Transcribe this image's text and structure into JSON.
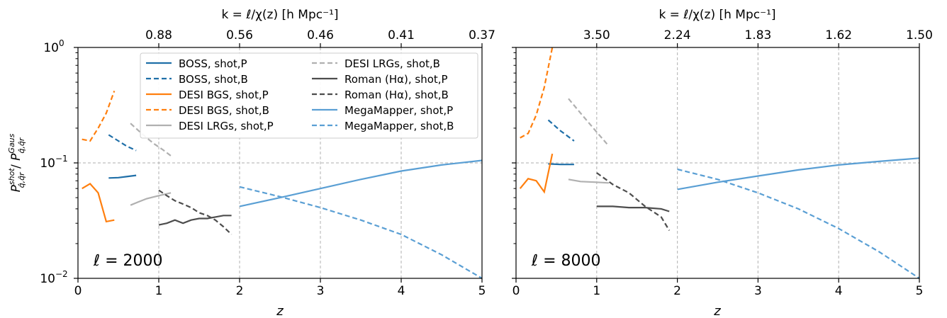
{
  "chart_data": [
    {
      "type": "line",
      "annotation": "ℓ = 2000",
      "xlabel": "z",
      "ylabel": "P^shot / P^Gaus",
      "ylabel_main": "P",
      "ylabel_sup1": "shot",
      "ylabel_sub1": "q̂,q̂r",
      "ylabel_sup2": "Gaus",
      "ylabel_sub2": "q̂,q̂r",
      "top_xlabel": "k = ℓ/χ(z) [h Mpc⁻¹]",
      "top_ticks": [
        {
          "z": 1,
          "label": "0.88"
        },
        {
          "z": 2,
          "label": "0.56"
        },
        {
          "z": 3,
          "label": "0.46"
        },
        {
          "z": 4,
          "label": "0.41"
        },
        {
          "z": 5,
          "label": "0.37"
        }
      ],
      "xlim": [
        0,
        5
      ],
      "ylim": [
        0.01,
        1
      ],
      "yscale": "log",
      "x_ticks": [
        "0",
        "1",
        "2",
        "3",
        "4",
        "5"
      ],
      "y_ticks": [
        {
          "value": 0.01,
          "base": "10",
          "exp": "−2"
        },
        {
          "value": 0.1,
          "base": "10",
          "exp": "−1"
        },
        {
          "value": 1,
          "base": "10",
          "exp": "0"
        }
      ],
      "hline": 0.1,
      "vlines": [
        1,
        2,
        3,
        4
      ],
      "legend_position": "top",
      "series": [
        {
          "name": "BOSS, shot,P",
          "color": "#1f6fa8",
          "dash": "solid",
          "x": [
            0.38,
            0.5,
            0.6,
            0.72
          ],
          "y": [
            0.074,
            0.0745,
            0.076,
            0.078
          ]
        },
        {
          "name": "BOSS, shot,B",
          "color": "#1f6fa8",
          "dash": "dashed",
          "x": [
            0.38,
            0.5,
            0.6,
            0.72
          ],
          "y": [
            0.175,
            0.155,
            0.14,
            0.128
          ]
        },
        {
          "name": "DESI BGS, shot,P",
          "color": "#ff7f0e",
          "dash": "solid",
          "x": [
            0.05,
            0.15,
            0.25,
            0.35,
            0.45
          ],
          "y": [
            0.06,
            0.066,
            0.055,
            0.031,
            0.032
          ]
        },
        {
          "name": "DESI BGS, shot,B",
          "color": "#ff7f0e",
          "dash": "dashed",
          "x": [
            0.05,
            0.15,
            0.25,
            0.35,
            0.45
          ],
          "y": [
            0.16,
            0.155,
            0.2,
            0.27,
            0.42
          ]
        },
        {
          "name": "DESI LRGs, shot,P",
          "color": "#b0b0b0",
          "dash": "solid",
          "x": [
            0.65,
            0.75,
            0.85,
            0.95,
            1.05,
            1.15
          ],
          "y": [
            0.043,
            0.046,
            0.049,
            0.051,
            0.053,
            0.055
          ]
        },
        {
          "name": "DESI LRGs, shot,B",
          "color": "#b0b0b0",
          "dash": "dashed",
          "x": [
            0.65,
            0.75,
            0.85,
            0.95,
            1.05,
            1.15
          ],
          "y": [
            0.22,
            0.19,
            0.165,
            0.145,
            0.13,
            0.115
          ]
        },
        {
          "name": "Roman (Hα), shot,P",
          "color": "#4d4d4d",
          "dash": "solid",
          "x": [
            1.0,
            1.1,
            1.2,
            1.3,
            1.4,
            1.5,
            1.6,
            1.7,
            1.8,
            1.9
          ],
          "y": [
            0.029,
            0.03,
            0.032,
            0.03,
            0.032,
            0.033,
            0.033,
            0.034,
            0.035,
            0.035
          ]
        },
        {
          "name": "Roman (Hα), shot,B",
          "color": "#4d4d4d",
          "dash": "dashed",
          "x": [
            1.0,
            1.1,
            1.2,
            1.3,
            1.4,
            1.5,
            1.6,
            1.7,
            1.8,
            1.9
          ],
          "y": [
            0.058,
            0.052,
            0.047,
            0.044,
            0.041,
            0.037,
            0.035,
            0.032,
            0.028,
            0.024
          ]
        },
        {
          "name": "MegaMapper, shot,P",
          "color": "#5a9fd4",
          "dash": "solid",
          "x": [
            2.0,
            2.5,
            3.0,
            3.5,
            4.0,
            4.5,
            5.0
          ],
          "y": [
            0.042,
            0.05,
            0.06,
            0.072,
            0.085,
            0.096,
            0.105
          ]
        },
        {
          "name": "MegaMapper, shot,B",
          "color": "#5a9fd4",
          "dash": "dashed",
          "x": [
            2.0,
            2.5,
            3.0,
            3.5,
            4.0,
            4.5,
            5.0
          ],
          "y": [
            0.062,
            0.051,
            0.041,
            0.032,
            0.024,
            0.016,
            0.01
          ]
        }
      ]
    },
    {
      "type": "line",
      "annotation": "ℓ = 8000",
      "xlabel": "z",
      "top_xlabel": "k = ℓ/χ(z) [h Mpc⁻¹]",
      "top_ticks": [
        {
          "z": 1,
          "label": "3.50"
        },
        {
          "z": 2,
          "label": "2.24"
        },
        {
          "z": 3,
          "label": "1.83"
        },
        {
          "z": 4,
          "label": "1.62"
        },
        {
          "z": 5,
          "label": "1.50"
        }
      ],
      "xlim": [
        0,
        5
      ],
      "ylim": [
        0.01,
        1
      ],
      "yscale": "log",
      "x_ticks": [
        "0",
        "1",
        "2",
        "3",
        "4",
        "5"
      ],
      "hline": 0.1,
      "vlines": [
        1,
        2,
        3,
        4
      ],
      "series": [
        {
          "name": "BOSS, shot,P",
          "color": "#1f6fa8",
          "dash": "solid",
          "x": [
            0.4,
            0.55,
            0.72
          ],
          "y": [
            0.098,
            0.097,
            0.097
          ]
        },
        {
          "name": "BOSS, shot,B",
          "color": "#1f6fa8",
          "dash": "dashed",
          "x": [
            0.4,
            0.55,
            0.72
          ],
          "y": [
            0.235,
            0.19,
            0.155
          ]
        },
        {
          "name": "DESI BGS, shot,P",
          "color": "#ff7f0e",
          "dash": "solid",
          "x": [
            0.05,
            0.15,
            0.25,
            0.35,
            0.45
          ],
          "y": [
            0.06,
            0.073,
            0.07,
            0.056,
            0.12
          ]
        },
        {
          "name": "DESI BGS, shot,B",
          "color": "#ff7f0e",
          "dash": "dashed",
          "x": [
            0.05,
            0.15,
            0.25,
            0.35,
            0.45
          ],
          "y": [
            0.165,
            0.18,
            0.26,
            0.45,
            1.0
          ]
        },
        {
          "name": "DESI LRGs, shot,P",
          "color": "#b0b0b0",
          "dash": "solid",
          "x": [
            0.65,
            0.8,
            1.0,
            1.15
          ],
          "y": [
            0.072,
            0.069,
            0.068,
            0.067
          ]
        },
        {
          "name": "DESI LRGs, shot,B",
          "color": "#b0b0b0",
          "dash": "dashed",
          "x": [
            0.65,
            0.8,
            1.0,
            1.15
          ],
          "y": [
            0.36,
            0.27,
            0.185,
            0.14
          ]
        },
        {
          "name": "Roman (Hα), shot,P",
          "color": "#4d4d4d",
          "dash": "solid",
          "x": [
            1.0,
            1.2,
            1.4,
            1.6,
            1.8,
            1.9
          ],
          "y": [
            0.042,
            0.042,
            0.041,
            0.041,
            0.04,
            0.038
          ]
        },
        {
          "name": "Roman (Hα), shot,B",
          "color": "#4d4d4d",
          "dash": "dashed",
          "x": [
            1.0,
            1.2,
            1.4,
            1.6,
            1.8,
            1.9
          ],
          "y": [
            0.082,
            0.065,
            0.055,
            0.042,
            0.034,
            0.026
          ]
        },
        {
          "name": "MegaMapper, shot,P",
          "color": "#5a9fd4",
          "dash": "solid",
          "x": [
            2.0,
            2.5,
            3.0,
            3.5,
            4.0,
            4.5,
            5.0
          ],
          "y": [
            0.059,
            0.068,
            0.077,
            0.087,
            0.096,
            0.103,
            0.11
          ]
        },
        {
          "name": "MegaMapper, shot,B",
          "color": "#5a9fd4",
          "dash": "dashed",
          "x": [
            2.0,
            2.5,
            3.0,
            3.5,
            4.0,
            4.5,
            5.0
          ],
          "y": [
            0.088,
            0.072,
            0.055,
            0.04,
            0.027,
            0.017,
            0.01
          ]
        }
      ]
    }
  ]
}
